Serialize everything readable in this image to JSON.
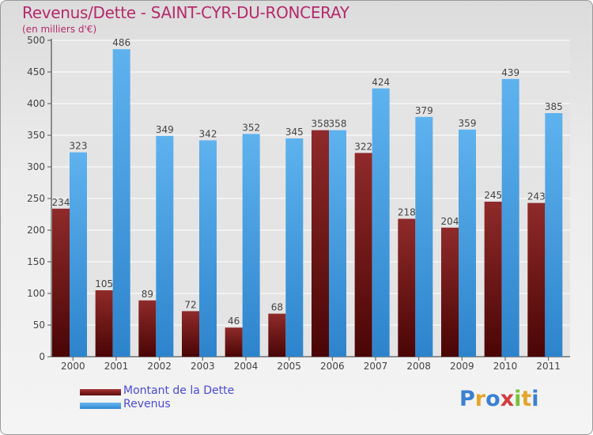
{
  "chart_data": {
    "type": "bar",
    "title": "Revenus/Dette - SAINT-CYR-DU-RONCERAY",
    "subtitle": "(en milliers d'€)",
    "categories": [
      "2000",
      "2001",
      "2002",
      "2003",
      "2004",
      "2005",
      "2006",
      "2007",
      "2008",
      "2009",
      "2010",
      "2011"
    ],
    "series": [
      {
        "name": "Montant de la Dette",
        "color": "#7a1f1f",
        "values": [
          234,
          105,
          89,
          72,
          46,
          68,
          358,
          322,
          218,
          204,
          245,
          243
        ]
      },
      {
        "name": "Revenus",
        "color": "#4da3e6",
        "values": [
          323,
          486,
          349,
          342,
          352,
          345,
          358,
          424,
          379,
          359,
          439,
          385
        ]
      }
    ],
    "ylim": [
      0,
      500
    ],
    "yticks": [
      0,
      50,
      100,
      150,
      200,
      250,
      300,
      350,
      400,
      450,
      500
    ],
    "grid": true,
    "legend_position": "bottom-left"
  },
  "logo": {
    "letters": [
      "P",
      "r",
      "o",
      "x",
      "i",
      "t",
      "i"
    ],
    "colors": [
      "#3a7fd4",
      "#e5a52a",
      "#3a7fd4",
      "#d23c3c",
      "#7cbf3a",
      "#e5a52a",
      "#3a7fd4"
    ]
  }
}
